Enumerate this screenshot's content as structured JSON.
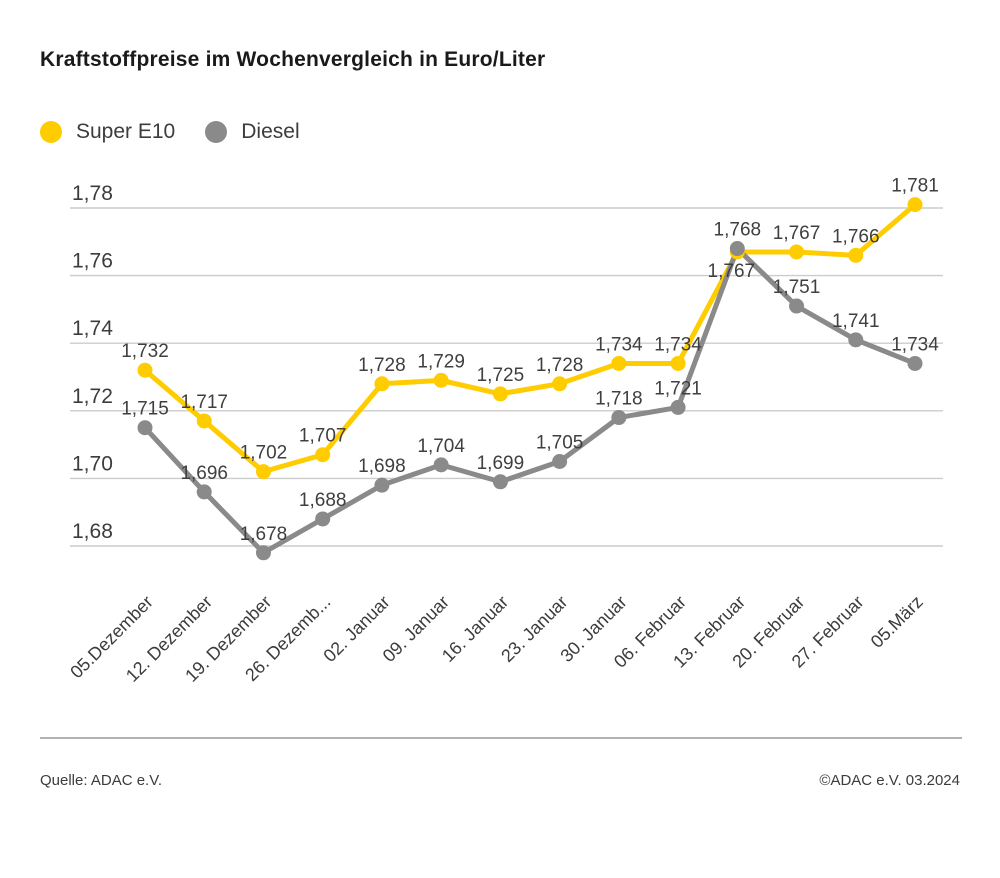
{
  "title": "Kraftstoffpreise im Wochenvergleich in Euro/Liter",
  "legend": {
    "items": [
      {
        "label": "Super E10",
        "color": "#FFCC00"
      },
      {
        "label": "Diesel",
        "color": "#8A8A8A"
      }
    ]
  },
  "footer": {
    "source": "Quelle: ADAC e.V.",
    "copyright": "©ADAC e.V. 03.2024"
  },
  "chart_data": {
    "type": "line",
    "title": "Kraftstoffpreise im Wochenvergleich in Euro/Liter",
    "unit": "Euro/Liter",
    "categories": [
      "05.Dezember",
      "12. Dezember",
      "19. Dezember",
      "26. Dezemb...",
      "02. Januar",
      "09. Januar",
      "16. Januar",
      "23. Januar",
      "30. Januar",
      "06. Februar",
      "13. Februar",
      "20. Februar",
      "27. Februar",
      "05.März"
    ],
    "series": [
      {
        "name": "Super E10",
        "color": "#FFCC00",
        "values": [
          1.732,
          1.717,
          1.702,
          1.707,
          1.728,
          1.729,
          1.725,
          1.728,
          1.734,
          1.734,
          1.767,
          1.767,
          1.766,
          1.781
        ]
      },
      {
        "name": "Diesel",
        "color": "#8A8A8A",
        "values": [
          1.715,
          1.696,
          1.678,
          1.688,
          1.698,
          1.704,
          1.699,
          1.705,
          1.718,
          1.721,
          1.768,
          1.751,
          1.741,
          1.734
        ]
      }
    ],
    "yticks": [
      1.78,
      1.76,
      1.74,
      1.72,
      1.7,
      1.68
    ],
    "ytick_labels": [
      "1,78",
      "1,76",
      "1,74",
      "1,72",
      "1,70",
      "1,68"
    ],
    "ylim": [
      1.672,
      1.787
    ],
    "grid": true,
    "legend_position": "top-left",
    "decimal_separator": ",",
    "point_labels": true,
    "colors": {
      "grid": "#cccccc",
      "text": "#3c3c3c",
      "label": "#3f3f3f"
    }
  }
}
